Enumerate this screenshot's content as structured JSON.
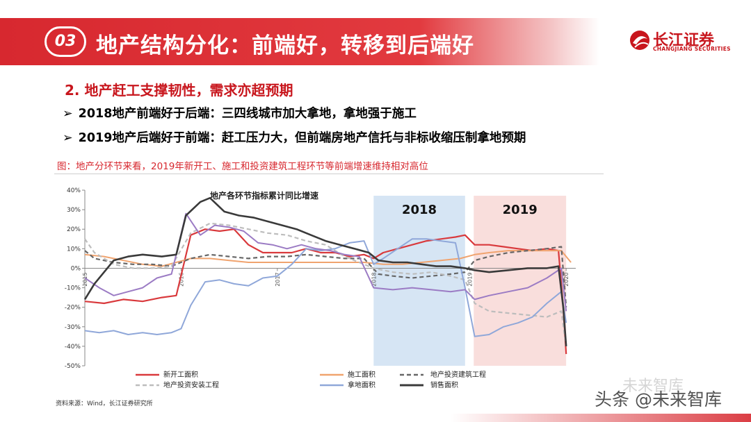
{
  "header": {
    "badge": "03",
    "title": "地产结构分化：前端好，转移到后端好",
    "logo_name": "长江证券",
    "logo_sub": "CHANGJIANG SECURITIES",
    "accent_color": "#d7282f"
  },
  "subtitle": "2. 地产赶工支撑韧性，需求亦超预期",
  "bullets": [
    "2018地产前端好于后端：三四线城市加大拿地，拿地强于施工",
    "2019地产后端好于前端：赶工压力大，但前端房地产信托与非标收缩压制拿地预期"
  ],
  "bullet_icon": "arrow-bullet-icon",
  "figure_caption": "图：地产分环节来看，2019年新开工、施工和投资建筑工程环节等前端增速维持相对高位",
  "source": "资料来源：Wind，长江证券研究所",
  "watermark": "头条 @未来智库",
  "watermark_ghost": "未来智库",
  "chart_data": {
    "type": "line",
    "title": "地产各环节指标累计同比增速",
    "ylim": [
      -50,
      40
    ],
    "yticks": [
      "40%",
      "30%",
      "20%",
      "10%",
      "0%",
      "-10%",
      "-20%",
      "-30%",
      "-40%",
      "-50%"
    ],
    "xticks": [
      "2015",
      "2016",
      "2017",
      "2018",
      "2019",
      "2020"
    ],
    "x_range": [
      2015.0,
      2020.1
    ],
    "shaded_regions": [
      {
        "label": "2018",
        "x0": 2018.0,
        "x1": 2018.95,
        "color": "#cfe0f2"
      },
      {
        "label": "2019",
        "x0": 2019.04,
        "x1": 2020.0,
        "color": "#f8d8d6"
      }
    ],
    "series": [
      {
        "name": "新开工面积",
        "color": "#d9393c",
        "dash": "solid",
        "width": 2.2,
        "points": [
          [
            2015.0,
            -17
          ],
          [
            2015.2,
            -18
          ],
          [
            2015.4,
            -16
          ],
          [
            2015.6,
            -17
          ],
          [
            2015.8,
            -15
          ],
          [
            2015.95,
            -14
          ],
          [
            2016.1,
            17
          ],
          [
            2016.25,
            20
          ],
          [
            2016.4,
            19
          ],
          [
            2016.55,
            20
          ],
          [
            2016.7,
            12
          ],
          [
            2016.85,
            8
          ],
          [
            2017.0,
            8
          ],
          [
            2017.15,
            8
          ],
          [
            2017.3,
            10
          ],
          [
            2017.45,
            8
          ],
          [
            2017.6,
            8
          ],
          [
            2017.75,
            6
          ],
          [
            2017.9,
            7
          ],
          [
            2018.0,
            5
          ],
          [
            2018.1,
            8
          ],
          [
            2018.25,
            10
          ],
          [
            2018.4,
            12
          ],
          [
            2018.55,
            14
          ],
          [
            2018.7,
            15
          ],
          [
            2018.85,
            16
          ],
          [
            2018.95,
            17
          ],
          [
            2019.05,
            12
          ],
          [
            2019.2,
            12
          ],
          [
            2019.35,
            11
          ],
          [
            2019.5,
            10
          ],
          [
            2019.65,
            9
          ],
          [
            2019.8,
            10
          ],
          [
            2019.92,
            9
          ],
          [
            2019.97,
            -20
          ],
          [
            2020.0,
            -44
          ]
        ]
      },
      {
        "name": "施工面积",
        "color": "#f0a36e",
        "dash": "solid",
        "width": 2.0,
        "points": [
          [
            2015.0,
            7
          ],
          [
            2015.2,
            6
          ],
          [
            2015.4,
            4
          ],
          [
            2015.6,
            2
          ],
          [
            2015.8,
            1
          ],
          [
            2015.95,
            3
          ],
          [
            2016.1,
            5
          ],
          [
            2016.3,
            5
          ],
          [
            2016.5,
            4
          ],
          [
            2016.7,
            3
          ],
          [
            2016.9,
            3
          ],
          [
            2017.1,
            3
          ],
          [
            2017.3,
            3
          ],
          [
            2017.5,
            3
          ],
          [
            2017.7,
            3
          ],
          [
            2017.9,
            3
          ],
          [
            2018.1,
            2
          ],
          [
            2018.3,
            2
          ],
          [
            2018.5,
            3
          ],
          [
            2018.7,
            4
          ],
          [
            2018.9,
            5
          ],
          [
            2019.05,
            7
          ],
          [
            2019.2,
            8
          ],
          [
            2019.4,
            9
          ],
          [
            2019.6,
            9
          ],
          [
            2019.8,
            9
          ],
          [
            2019.95,
            9
          ],
          [
            2020.05,
            3
          ]
        ]
      },
      {
        "name": "地产投资建筑工程",
        "color": "#666666",
        "dash": "6,4",
        "width": 2.2,
        "points": [
          [
            2015.0,
            9
          ],
          [
            2015.1,
            5
          ],
          [
            2015.3,
            3
          ],
          [
            2015.5,
            2
          ],
          [
            2015.7,
            2
          ],
          [
            2015.9,
            1
          ],
          [
            2016.1,
            5
          ],
          [
            2016.3,
            7
          ],
          [
            2016.5,
            6
          ],
          [
            2016.7,
            5
          ],
          [
            2016.9,
            6
          ],
          [
            2017.1,
            6
          ],
          [
            2017.3,
            7
          ],
          [
            2017.5,
            6
          ],
          [
            2017.7,
            5
          ],
          [
            2017.9,
            5
          ],
          [
            2018.05,
            -3
          ],
          [
            2018.2,
            -4
          ],
          [
            2018.4,
            -5
          ],
          [
            2018.6,
            -4
          ],
          [
            2018.8,
            -3
          ],
          [
            2018.95,
            -2
          ],
          [
            2019.05,
            4
          ],
          [
            2019.2,
            6
          ],
          [
            2019.4,
            8
          ],
          [
            2019.6,
            9
          ],
          [
            2019.8,
            10
          ],
          [
            2019.95,
            11
          ],
          [
            2020.0,
            -20
          ]
        ]
      },
      {
        "name": "地产投资安装工程",
        "color": "#bdbdbd",
        "dash": "6,4",
        "width": 2.2,
        "points": [
          [
            2015.0,
            15
          ],
          [
            2015.1,
            8
          ],
          [
            2015.3,
            2
          ],
          [
            2015.5,
            0
          ],
          [
            2015.7,
            0
          ],
          [
            2015.9,
            1
          ],
          [
            2016.1,
            18
          ],
          [
            2016.3,
            23
          ],
          [
            2016.5,
            22
          ],
          [
            2016.7,
            20
          ],
          [
            2016.9,
            18
          ],
          [
            2017.1,
            17
          ],
          [
            2017.3,
            14
          ],
          [
            2017.5,
            12
          ],
          [
            2017.7,
            6
          ],
          [
            2017.9,
            2
          ],
          [
            2018.0,
            0
          ],
          [
            2018.2,
            -2
          ],
          [
            2018.4,
            -3
          ],
          [
            2018.6,
            -2
          ],
          [
            2018.8,
            -4
          ],
          [
            2018.95,
            -6
          ],
          [
            2019.05,
            -18
          ],
          [
            2019.2,
            -22
          ],
          [
            2019.4,
            -23
          ],
          [
            2019.6,
            -24
          ],
          [
            2019.8,
            -25
          ],
          [
            2019.95,
            -22
          ],
          [
            2020.0,
            -40
          ]
        ]
      },
      {
        "name": "拿地面积",
        "color": "#8fa7d9",
        "dash": "solid",
        "width": 2.0,
        "points": [
          [
            2015.0,
            -32
          ],
          [
            2015.15,
            -33
          ],
          [
            2015.3,
            -32
          ],
          [
            2015.45,
            -34
          ],
          [
            2015.6,
            -33
          ],
          [
            2015.75,
            -34
          ],
          [
            2015.9,
            -33
          ],
          [
            2016.0,
            -31
          ],
          [
            2016.1,
            -19
          ],
          [
            2016.25,
            -7
          ],
          [
            2016.4,
            -6
          ],
          [
            2016.55,
            -8
          ],
          [
            2016.7,
            -9
          ],
          [
            2016.85,
            -5
          ],
          [
            2017.0,
            -4
          ],
          [
            2017.15,
            2
          ],
          [
            2017.3,
            10
          ],
          [
            2017.45,
            9
          ],
          [
            2017.6,
            10
          ],
          [
            2017.75,
            13
          ],
          [
            2017.9,
            14
          ],
          [
            2018.0,
            2
          ],
          [
            2018.1,
            5
          ],
          [
            2018.25,
            10
          ],
          [
            2018.4,
            15
          ],
          [
            2018.55,
            15
          ],
          [
            2018.7,
            14
          ],
          [
            2018.85,
            13
          ],
          [
            2018.95,
            -10
          ],
          [
            2019.05,
            -35
          ],
          [
            2019.2,
            -34
          ],
          [
            2019.35,
            -30
          ],
          [
            2019.5,
            -28
          ],
          [
            2019.65,
            -25
          ],
          [
            2019.8,
            -18
          ],
          [
            2019.95,
            -12
          ],
          [
            2020.0,
            -28
          ]
        ]
      },
      {
        "name": "__purple",
        "color": "#9b7bc4",
        "dash": "solid",
        "width": 2.0,
        "points": [
          [
            2015.0,
            -5
          ],
          [
            2015.15,
            -10
          ],
          [
            2015.3,
            -14
          ],
          [
            2015.45,
            -12
          ],
          [
            2015.6,
            -10
          ],
          [
            2015.75,
            -5
          ],
          [
            2015.9,
            -3
          ],
          [
            2016.05,
            28
          ],
          [
            2016.2,
            17
          ],
          [
            2016.35,
            22
          ],
          [
            2016.5,
            21
          ],
          [
            2016.65,
            19
          ],
          [
            2016.8,
            13
          ],
          [
            2016.95,
            12
          ],
          [
            2017.1,
            10
          ],
          [
            2017.25,
            12
          ],
          [
            2017.4,
            10
          ],
          [
            2017.55,
            9
          ],
          [
            2017.7,
            7
          ],
          [
            2017.85,
            6
          ],
          [
            2018.0,
            -10
          ],
          [
            2018.2,
            -11
          ],
          [
            2018.4,
            -10
          ],
          [
            2018.6,
            -11
          ],
          [
            2018.8,
            -12
          ],
          [
            2018.95,
            -11
          ],
          [
            2019.05,
            -16
          ],
          [
            2019.2,
            -14
          ],
          [
            2019.4,
            -12
          ],
          [
            2019.6,
            -10
          ],
          [
            2019.8,
            -5
          ],
          [
            2019.95,
            0
          ],
          [
            2020.0,
            -22
          ]
        ]
      },
      {
        "name": "销售面积",
        "color": "#3a3a3a",
        "dash": "solid",
        "width": 2.6,
        "points": [
          [
            2015.0,
            -16
          ],
          [
            2015.1,
            -8
          ],
          [
            2015.2,
            -2
          ],
          [
            2015.3,
            4
          ],
          [
            2015.45,
            6
          ],
          [
            2015.6,
            7
          ],
          [
            2015.8,
            6
          ],
          [
            2015.95,
            7
          ],
          [
            2016.05,
            27
          ],
          [
            2016.2,
            34
          ],
          [
            2016.3,
            36
          ],
          [
            2016.45,
            29
          ],
          [
            2016.6,
            27
          ],
          [
            2016.75,
            26
          ],
          [
            2016.9,
            24
          ],
          [
            2017.05,
            22
          ],
          [
            2017.2,
            20
          ],
          [
            2017.35,
            17
          ],
          [
            2017.5,
            14
          ],
          [
            2017.65,
            12
          ],
          [
            2017.8,
            10
          ],
          [
            2017.95,
            8
          ],
          [
            2018.05,
            4
          ],
          [
            2018.2,
            3
          ],
          [
            2018.35,
            3
          ],
          [
            2018.5,
            2
          ],
          [
            2018.65,
            1
          ],
          [
            2018.8,
            1
          ],
          [
            2018.95,
            0
          ],
          [
            2019.05,
            -1
          ],
          [
            2019.2,
            -2
          ],
          [
            2019.4,
            -1
          ],
          [
            2019.6,
            0
          ],
          [
            2019.8,
            0
          ],
          [
            2019.92,
            1
          ],
          [
            2019.97,
            -20
          ],
          [
            2020.0,
            -40
          ]
        ]
      }
    ],
    "legend": [
      {
        "label": "新开工面积",
        "series": 0
      },
      {
        "label": "施工面积",
        "series": 1
      },
      {
        "label": "地产投资建筑工程",
        "series": 2
      },
      {
        "label": "地产投资安装工程",
        "series": 3
      },
      {
        "label": "拿地面积",
        "series": 4
      },
      {
        "label": "销售面积",
        "series": 6
      }
    ],
    "legend_position": "bottom"
  }
}
